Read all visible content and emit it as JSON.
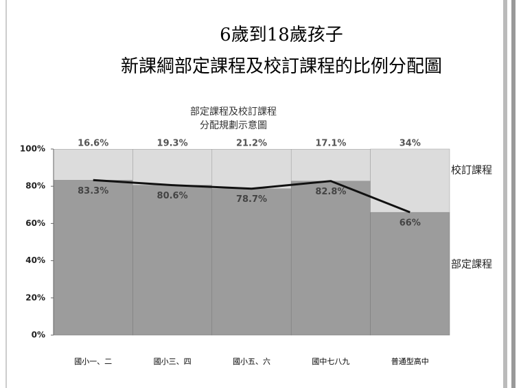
{
  "chart_data": {
    "type": "stacked-bar-line",
    "title_lines": [
      "6歲到18歲孩子",
      "新課綱部定課程及校訂課程的比例分配圖"
    ],
    "chart_title_lines": [
      "部定課程及校訂課程",
      "分配規劃示意圖"
    ],
    "categories": [
      "國小一、二",
      "國小三、四",
      "國小五、六",
      "國中七八九",
      "普通型高中"
    ],
    "series": [
      {
        "name": "部定課程",
        "color": "#9c9c9c",
        "line_color": "#111111",
        "values": [
          83.3,
          80.6,
          78.7,
          82.8,
          66
        ],
        "value_labels": [
          "83.3%",
          "80.6%",
          "78.7%",
          "82.8%",
          "66%"
        ]
      },
      {
        "name": "校訂課程",
        "color": "#dcdcdc",
        "values": [
          16.6,
          19.3,
          21.2,
          17.1,
          34
        ],
        "value_labels": [
          "16.6%",
          "19.3%",
          "21.2%",
          "17.1%",
          "34%"
        ]
      }
    ],
    "ylim": [
      0,
      100
    ],
    "yticks": [
      {
        "value": 0,
        "label": "0%"
      },
      {
        "value": 20,
        "label": "20%"
      },
      {
        "value": 40,
        "label": "40%"
      },
      {
        "value": 60,
        "label": "60%"
      },
      {
        "value": 80,
        "label": "80%"
      },
      {
        "value": 100,
        "label": "100%"
      }
    ]
  }
}
